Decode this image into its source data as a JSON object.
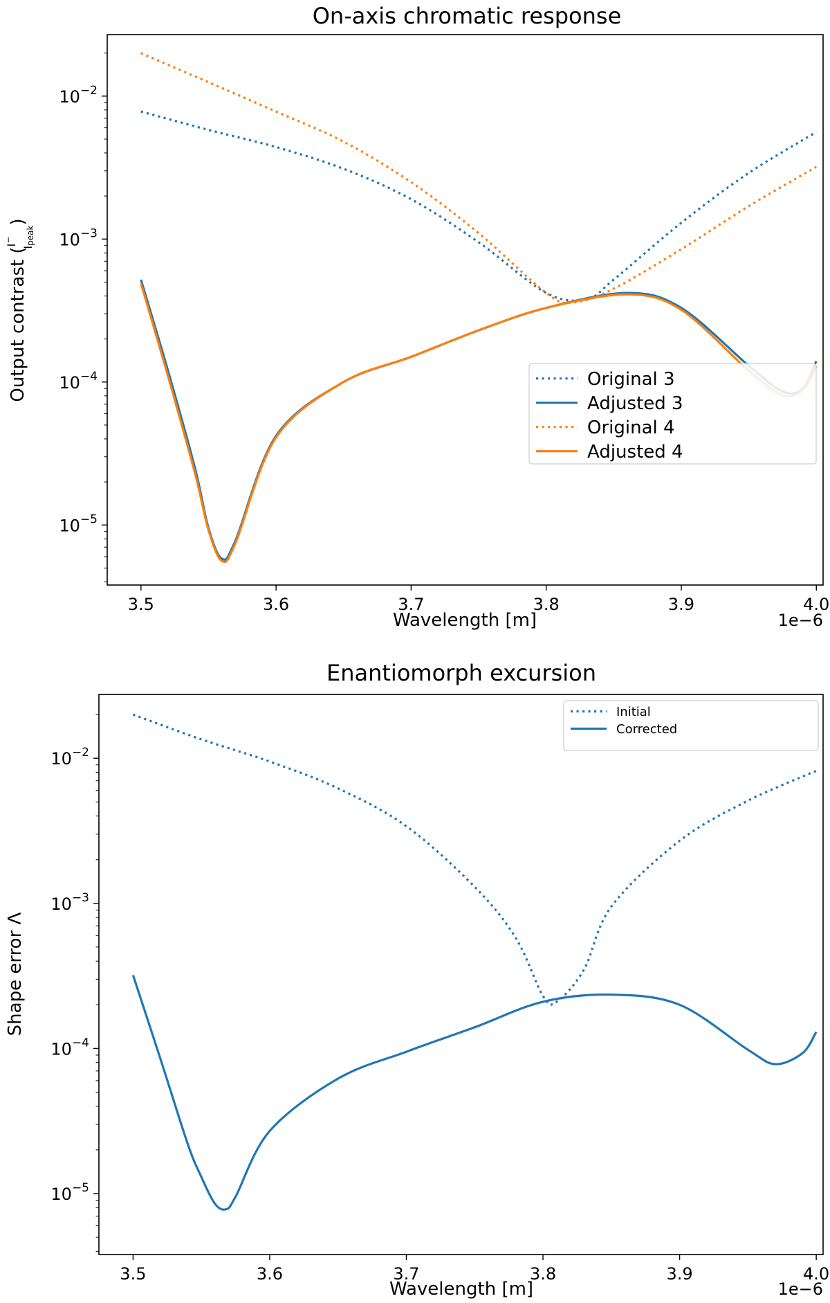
{
  "chart_data": [
    {
      "type": "line",
      "title": "On-axis chromatic response",
      "xlabel": "Wavelength [m]",
      "ylabel_prefix": "Output contrast (",
      "ylabel_num": "I",
      "ylabel_num_sup": "−",
      "ylabel_den": "I",
      "ylabel_den_sub": "peak",
      "ylabel_suffix": ")",
      "x_offset_label": "1e−6",
      "xscale_factor": 1e-06,
      "xlim": [
        3.475,
        4.005
      ],
      "ylim_log10": [
        -5.42,
        -1.57
      ],
      "yscale": "log",
      "x_ticks": [
        3.5,
        3.6,
        3.7,
        3.8,
        3.9,
        4.0
      ],
      "x_tick_labels": [
        "3.5",
        "3.6",
        "3.7",
        "3.8",
        "3.9",
        "4.0"
      ],
      "y_tick_exponents": [
        -5,
        -4,
        -3,
        -2
      ],
      "y_tick_base": "10",
      "y_tick_labels": [
        "−5",
        "−4",
        "−3",
        "−2"
      ],
      "legend_position": "lower-right",
      "series": [
        {
          "name": "Original 3",
          "color": "#1f77b4",
          "style": "dotted",
          "x": [
            3.5,
            3.55,
            3.6,
            3.65,
            3.7,
            3.75,
            3.8,
            3.83,
            3.85,
            3.9,
            3.95,
            4.0
          ],
          "y": [
            0.0078,
            0.0058,
            0.0044,
            0.0031,
            0.0019,
            0.00095,
            0.00042,
            0.00038,
            0.00052,
            0.0013,
            0.0029,
            0.0056
          ]
        },
        {
          "name": "Adjusted 3",
          "color": "#1f77b4",
          "style": "solid",
          "x": [
            3.5,
            3.52,
            3.54,
            3.55,
            3.56,
            3.57,
            3.6,
            3.65,
            3.7,
            3.75,
            3.8,
            3.86,
            3.9,
            3.95,
            3.975,
            3.99,
            4.0
          ],
          "y": [
            0.00052,
            0.00012,
            2.5e-05,
            9.5e-06,
            5.8e-06,
            7.8e-06,
            4.2e-05,
            0.0001,
            0.00015,
            0.00023,
            0.00033,
            0.00042,
            0.00033,
            0.00013,
            8.6e-05,
            9e-05,
            0.00014
          ]
        },
        {
          "name": "Original 4",
          "color": "#ff7f0e",
          "style": "dotted",
          "x": [
            3.5,
            3.55,
            3.6,
            3.65,
            3.7,
            3.75,
            3.8,
            3.82,
            3.85,
            3.9,
            3.95,
            4.0
          ],
          "y": [
            0.02,
            0.0125,
            0.0078,
            0.0048,
            0.0025,
            0.0011,
            0.00042,
            0.00036,
            0.00045,
            0.00085,
            0.0017,
            0.0032
          ]
        },
        {
          "name": "Adjusted 4",
          "color": "#ff7f0e",
          "style": "solid",
          "x": [
            3.5,
            3.52,
            3.54,
            3.55,
            3.56,
            3.57,
            3.6,
            3.65,
            3.7,
            3.75,
            3.8,
            3.86,
            3.9,
            3.95,
            3.975,
            3.99,
            4.0
          ],
          "y": [
            0.00049,
            0.00011,
            2.3e-05,
            9.2e-06,
            5.6e-06,
            7.5e-06,
            4.1e-05,
            0.0001,
            0.00015,
            0.00023,
            0.00033,
            0.00041,
            0.00032,
            0.00012,
            8.1e-05,
            8.8e-05,
            0.00013
          ]
        }
      ]
    },
    {
      "type": "line",
      "title": "Enantiomorph excursion",
      "xlabel": "Wavelength [m]",
      "ylabel": "Shape error Λ",
      "x_offset_label": "1e−6",
      "xscale_factor": 1e-06,
      "xlim": [
        3.475,
        4.005
      ],
      "ylim_log10": [
        -5.42,
        -1.56
      ],
      "yscale": "log",
      "x_ticks": [
        3.5,
        3.6,
        3.7,
        3.8,
        3.9,
        4.0
      ],
      "x_tick_labels": [
        "3.5",
        "3.6",
        "3.7",
        "3.8",
        "3.9",
        "4.0"
      ],
      "y_tick_exponents": [
        -5,
        -4,
        -3,
        -2
      ],
      "y_tick_base": "10",
      "y_tick_labels": [
        "−5",
        "−4",
        "−3",
        "−2"
      ],
      "legend_position": "upper-right",
      "series": [
        {
          "name": "Initial",
          "color": "#1f77b4",
          "style": "dotted",
          "x": [
            3.5,
            3.55,
            3.6,
            3.65,
            3.7,
            3.75,
            3.78,
            3.8,
            3.81,
            3.83,
            3.85,
            3.9,
            3.95,
            4.0
          ],
          "y": [
            0.02,
            0.0135,
            0.0095,
            0.0062,
            0.0034,
            0.0013,
            0.00058,
            0.00023,
            0.00021,
            0.00035,
            0.00095,
            0.0027,
            0.0051,
            0.0082
          ]
        },
        {
          "name": "Corrected",
          "color": "#1f77b4",
          "style": "solid",
          "x": [
            3.5,
            3.52,
            3.54,
            3.55,
            3.56,
            3.568,
            3.575,
            3.6,
            3.65,
            3.7,
            3.75,
            3.8,
            3.85,
            3.9,
            3.95,
            3.97,
            3.99,
            4.0
          ],
          "y": [
            0.00032,
            8.5e-05,
            2.2e-05,
            1.3e-05,
            8.5e-06,
            7.8e-06,
            9.5e-06,
            2.7e-05,
            6.2e-05,
            9.5e-05,
            0.00014,
            0.00021,
            0.000235,
            0.0002,
            9.8e-05,
            7.8e-05,
            9.3e-05,
            0.00013
          ]
        }
      ]
    }
  ]
}
